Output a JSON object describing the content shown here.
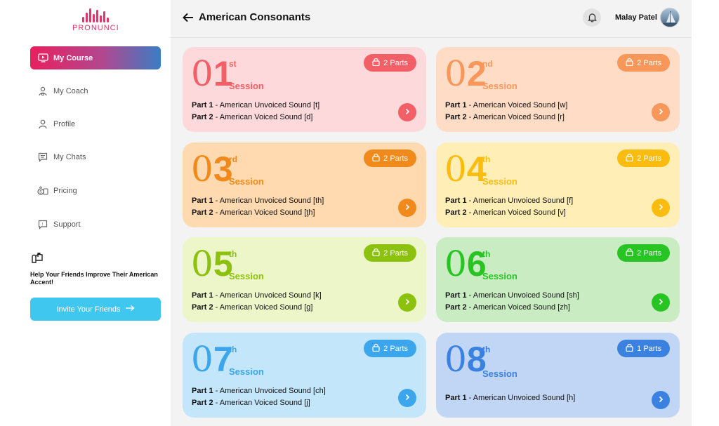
{
  "brand": {
    "name": "PRONUNCI"
  },
  "sidebar": {
    "items": [
      {
        "label": "My Course",
        "icon": "monitor-play-icon"
      },
      {
        "label": "My Coach",
        "icon": "coach-icon"
      },
      {
        "label": "Profile",
        "icon": "user-icon"
      },
      {
        "label": "My Chats",
        "icon": "chat-icon"
      },
      {
        "label": "Pricing",
        "icon": "pricing-icon"
      },
      {
        "label": "Support",
        "icon": "support-icon"
      }
    ],
    "invite": {
      "text": "Help Your Friends Improve Their American Accent!",
      "button": "Invite Your Friends"
    }
  },
  "header": {
    "title": "American Consonants",
    "user_name": "Malay Patel"
  },
  "sessions": [
    {
      "num": "01",
      "suffix": "st",
      "label": "Session",
      "badge": "2 Parts",
      "colors": {
        "bg": "#fdd9dc",
        "accent": "#f25f67"
      },
      "parts": [
        {
          "prefix": "Part 1",
          "text": " - American Unvoiced Sound [t]"
        },
        {
          "prefix": "Part 2",
          "text": " - American Voiced Sound [d]"
        }
      ]
    },
    {
      "num": "02",
      "suffix": "nd",
      "label": "Session",
      "badge": "2 Parts",
      "colors": {
        "bg": "#ffdcc6",
        "accent": "#f7975a"
      },
      "parts": [
        {
          "prefix": "Part 1",
          "text": " - American Voiced Sound [w]"
        },
        {
          "prefix": "Part 2",
          "text": " - American Voiced Sound [r]"
        }
      ]
    },
    {
      "num": "03",
      "suffix": "rd",
      "label": "Session",
      "badge": "2 Parts",
      "colors": {
        "bg": "#ffd9b0",
        "accent": "#f08b1b"
      },
      "parts": [
        {
          "prefix": "Part 1",
          "text": " - American Unvoiced Sound [th]"
        },
        {
          "prefix": "Part 2",
          "text": " - American Voiced Sound [t̬h]"
        }
      ]
    },
    {
      "num": "04",
      "suffix": "th",
      "label": "Session",
      "badge": "2 Parts",
      "colors": {
        "bg": "#ffeeb5",
        "accent": "#fbbc10"
      },
      "parts": [
        {
          "prefix": "Part 1",
          "text": " - American Unvoiced Sound [f]"
        },
        {
          "prefix": "Part 2",
          "text": " - American Voiced Sound [v]"
        }
      ]
    },
    {
      "num": "05",
      "suffix": "th",
      "label": "Session",
      "badge": "2 Parts",
      "colors": {
        "bg": "#ecf6c8",
        "accent": "#8cc10e"
      },
      "parts": [
        {
          "prefix": "Part 1",
          "text": " - American Unvoiced Sound [k]"
        },
        {
          "prefix": "Part 2",
          "text": " - American Voiced Sound [g]"
        }
      ]
    },
    {
      "num": "06",
      "suffix": "th",
      "label": "Session",
      "badge": "2 Parts",
      "colors": {
        "bg": "#c9ecc2",
        "accent": "#27c423"
      },
      "parts": [
        {
          "prefix": "Part 1",
          "text": " - American Unvoiced Sound [sh]"
        },
        {
          "prefix": "Part 2",
          "text": " - American Voiced Sound [zh]"
        }
      ]
    },
    {
      "num": "07",
      "suffix": "th",
      "label": "Session",
      "badge": "2 Parts",
      "colors": {
        "bg": "#c3e6fb",
        "accent": "#3ba6ec"
      },
      "parts": [
        {
          "prefix": "Part 1",
          "text": " - American Unvoiced Sound [ch]"
        },
        {
          "prefix": "Part 2",
          "text": " - American Voiced Sound [j]"
        }
      ]
    },
    {
      "num": "08",
      "suffix": "th",
      "label": "Session",
      "badge": "1 Parts",
      "colors": {
        "bg": "#c0d6f4",
        "accent": "#3b82e0"
      },
      "parts": [
        {
          "prefix": "Part 1",
          "text": " - American Unvoiced Sound [h]"
        }
      ]
    }
  ]
}
